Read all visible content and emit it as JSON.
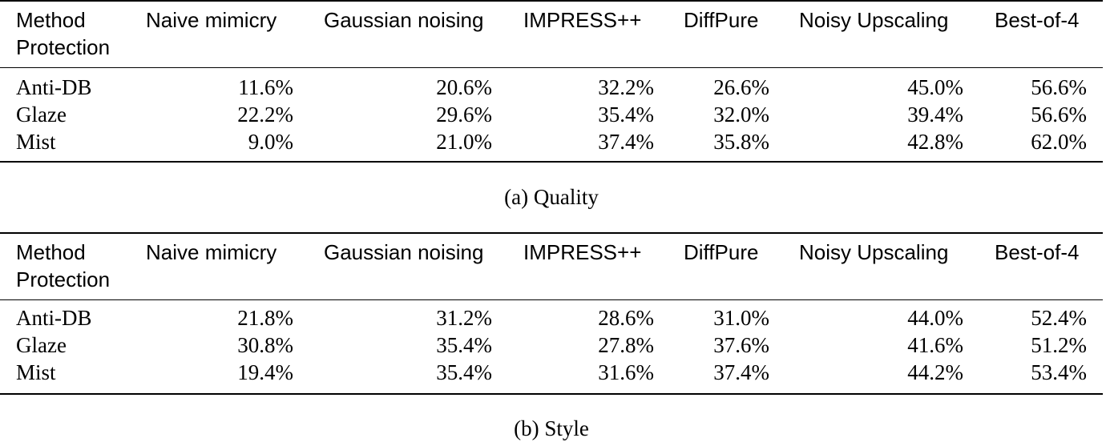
{
  "columns": [
    "Naive mimicry",
    "Gaussian noising",
    "IMPRESS++",
    "DiffPure",
    "Noisy Upscaling",
    "Best-of-4"
  ],
  "header_left": [
    "Method",
    "Protection"
  ],
  "tables": [
    {
      "caption": "(a) Quality",
      "rows": [
        {
          "protection": "Anti-DB",
          "values": [
            "11.6%",
            "20.6%",
            "32.2%",
            "26.6%",
            "45.0%",
            "56.6%"
          ]
        },
        {
          "protection": "Glaze",
          "values": [
            "22.2%",
            "29.6%",
            "35.4%",
            "32.0%",
            "39.4%",
            "56.6%"
          ]
        },
        {
          "protection": "Mist",
          "values": [
            "9.0%",
            "21.0%",
            "37.4%",
            "35.8%",
            "42.8%",
            "62.0%"
          ]
        }
      ]
    },
    {
      "caption": "(b) Style",
      "rows": [
        {
          "protection": "Anti-DB",
          "values": [
            "21.8%",
            "31.2%",
            "28.6%",
            "31.0%",
            "44.0%",
            "52.4%"
          ]
        },
        {
          "protection": "Glaze",
          "values": [
            "30.8%",
            "35.4%",
            "27.8%",
            "37.6%",
            "41.6%",
            "51.2%"
          ]
        },
        {
          "protection": "Mist",
          "values": [
            "19.4%",
            "35.4%",
            "31.6%",
            "37.4%",
            "44.2%",
            "53.4%"
          ]
        }
      ]
    }
  ]
}
